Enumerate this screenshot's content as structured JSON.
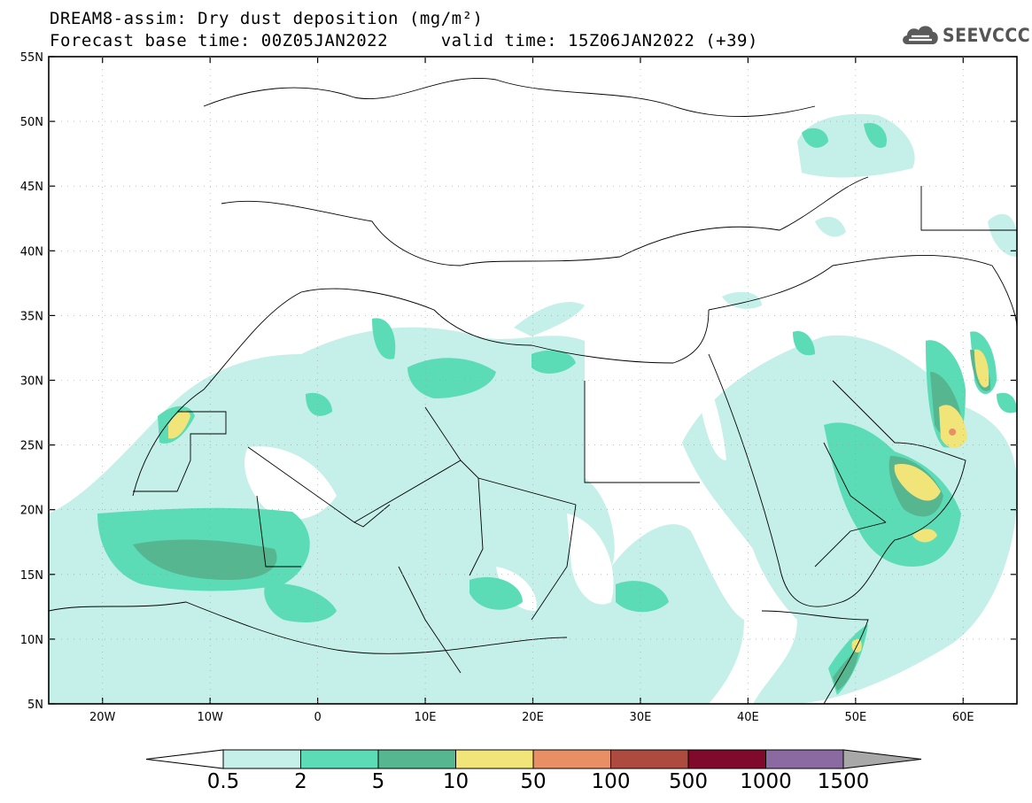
{
  "title": {
    "line1": "DREAM8-assim: Dry dust deposition (mg/m²)",
    "line2": "Forecast base time: 00Z05JAN2022     valid time: 15Z06JAN2022 (+39)"
  },
  "logo": {
    "text": "SEEVCCC",
    "icon": "cloud-icon"
  },
  "map": {
    "lat_range": [
      5,
      55
    ],
    "lon_range": [
      -25,
      65
    ],
    "lat_ticks": [
      "5N",
      "10N",
      "15N",
      "20N",
      "25N",
      "30N",
      "35N",
      "40N",
      "45N",
      "50N",
      "55N"
    ],
    "lon_ticks": [
      "20W",
      "10W",
      "0",
      "10E",
      "20E",
      "30E",
      "40E",
      "50E",
      "60E"
    ],
    "max_value_location": {
      "lon": 59,
      "lat": 26,
      "category": "50-100"
    }
  },
  "colorbar": {
    "labels": [
      "0.5",
      "2",
      "5",
      "10",
      "50",
      "100",
      "500",
      "1000",
      "1500"
    ],
    "colors": [
      "#c5efe9",
      "#5bdcb6",
      "#55b68f",
      "#f1e57a",
      "#e98f65",
      "#ad4b41",
      "#800a2c",
      "#8b6aa1"
    ],
    "under_color": "#ffffff",
    "over_color": "#a8a8a8"
  }
}
